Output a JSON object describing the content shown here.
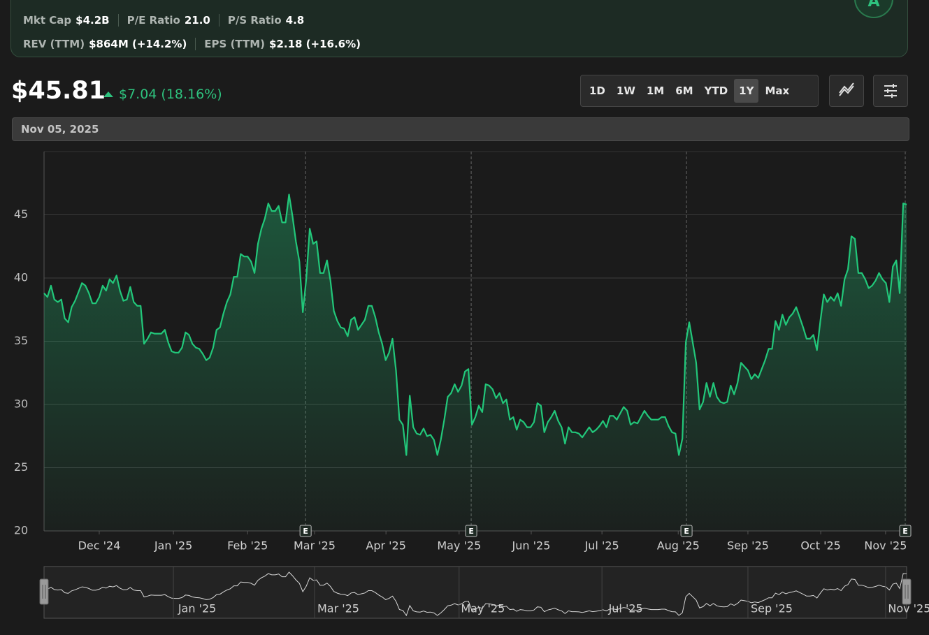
{
  "header": {
    "stats": [
      [
        {
          "label": "Mkt Cap",
          "value": "$4.2B"
        },
        {
          "label": "P/E Ratio",
          "value": "21.0"
        },
        {
          "label": "P/S Ratio",
          "value": "4.8"
        }
      ],
      [
        {
          "label": "REV (TTM)",
          "value": "$864M (+14.2%)"
        },
        {
          "label": "EPS (TTM)",
          "value": "$2.18 (+16.6%)"
        }
      ]
    ],
    "rating": "A"
  },
  "quote": {
    "price": "$45.81",
    "change": "$7.04 (18.16%)"
  },
  "ranges": [
    "1D",
    "1W",
    "1M",
    "6M",
    "YTD",
    "1Y",
    "Max"
  ],
  "active_range": "1Y",
  "date": "Nov 05, 2025",
  "chart_data": {
    "type": "line",
    "color": "#22c77a",
    "grid": true,
    "xlim": [
      0,
      250
    ],
    "ylim": [
      20,
      50
    ],
    "yticks": [
      20,
      25,
      30,
      35,
      40,
      45
    ],
    "xticks": [
      {
        "value": 16,
        "label": "Dec '24"
      },
      {
        "value": 37.5,
        "label": "Jan '25"
      },
      {
        "value": 59,
        "label": "Feb '25"
      },
      {
        "value": 78.4,
        "label": "Mar '25"
      },
      {
        "value": 99.1,
        "label": "Apr '25"
      },
      {
        "value": 120.3,
        "label": "May '25"
      },
      {
        "value": 141.2,
        "label": "Jun '25"
      },
      {
        "value": 161.7,
        "label": "Jul '25"
      },
      {
        "value": 183.8,
        "label": "Aug '25"
      },
      {
        "value": 204,
        "label": "Sep '25"
      },
      {
        "value": 225.1,
        "label": "Oct '25"
      },
      {
        "value": 243.9,
        "label": "Nov '25"
      }
    ],
    "events": [
      {
        "x": 75.8,
        "label": "E"
      },
      {
        "x": 123.8,
        "label": "E"
      },
      {
        "x": 186.2,
        "label": "E"
      },
      {
        "x": 249.6,
        "label": "E"
      }
    ],
    "values": [
      38.8,
      38.5,
      39.4,
      38.3,
      38.1,
      38.3,
      36.8,
      36.5,
      37.7,
      38.2,
      38.9,
      39.6,
      39.4,
      38.8,
      38.0,
      38.0,
      38.5,
      39.4,
      39.0,
      39.9,
      39.6,
      40.2,
      39.0,
      38.2,
      38.3,
      39.3,
      38.1,
      37.8,
      37.8,
      34.8,
      35.2,
      35.7,
      35.6,
      35.6,
      35.6,
      35.9,
      34.9,
      34.2,
      34.1,
      34.1,
      34.5,
      35.7,
      35.5,
      34.8,
      34.5,
      34.4,
      34.0,
      33.5,
      33.7,
      34.5,
      35.9,
      36.1,
      37.2,
      38.1,
      38.7,
      40.1,
      40.1,
      41.9,
      41.7,
      41.7,
      41.3,
      40.4,
      42.7,
      43.9,
      44.7,
      45.9,
      45.3,
      45.3,
      45.7,
      44.4,
      44.4,
      46.6,
      44.9,
      42.9,
      41.3,
      37.3,
      39.9,
      43.9,
      42.7,
      42.9,
      40.4,
      40.4,
      41.4,
      39.8,
      37.4,
      36.6,
      36.1,
      36.0,
      35.4,
      36.7,
      36.9,
      35.9,
      36.3,
      36.7,
      37.8,
      37.8,
      36.9,
      35.7,
      34.8,
      33.5,
      34.1,
      35.2,
      32.7,
      28.8,
      28.4,
      26.0,
      30.7,
      28.2,
      27.7,
      27.6,
      28.1,
      27.5,
      27.6,
      27.2,
      26.0,
      27.2,
      28.8,
      30.6,
      30.9,
      31.6,
      31.0,
      31.5,
      32.6,
      32.8,
      28.4,
      29.0,
      29.9,
      29.4,
      31.6,
      31.5,
      31.2,
      30.5,
      30.9,
      30.1,
      30.4,
      28.8,
      29.0,
      28.0,
      28.8,
      28.6,
      28.2,
      28.2,
      28.6,
      30.1,
      29.9,
      27.8,
      28.6,
      29.0,
      29.5,
      28.7,
      28.2,
      26.9,
      28.2,
      27.8,
      27.8,
      27.7,
      27.4,
      27.8,
      28.2,
      27.8,
      28.0,
      28.3,
      28.7,
      28.2,
      29.1,
      29.1,
      28.8,
      29.3,
      29.8,
      29.5,
      28.4,
      28.6,
      28.5,
      29.0,
      29.5,
      29.1,
      28.8,
      28.8,
      28.8,
      29.0,
      29.0,
      28.3,
      27.8,
      27.7,
      26.0,
      27.3,
      34.9,
      36.5,
      34.9,
      33.3,
      29.6,
      30.2,
      31.7,
      30.6,
      31.7,
      30.6,
      30.2,
      30.1,
      30.2,
      31.5,
      30.8,
      31.7,
      33.3,
      33.0,
      32.7,
      32.0,
      32.4,
      32.1,
      32.8,
      33.5,
      34.4,
      34.4,
      36.6,
      35.9,
      37.1,
      36.3,
      36.9,
      37.2,
      37.7,
      36.9,
      36.1,
      35.2,
      35.2,
      35.5,
      34.3,
      36.6,
      38.7,
      38.1,
      38.5,
      38.2,
      38.8,
      37.8,
      39.9,
      40.7,
      43.3,
      43.1,
      40.4,
      40.4,
      39.9,
      39.2,
      39.4,
      39.8,
      40.4,
      39.9,
      39.6,
      38.1,
      40.9,
      41.4,
      38.8,
      45.9,
      45.81
    ]
  }
}
